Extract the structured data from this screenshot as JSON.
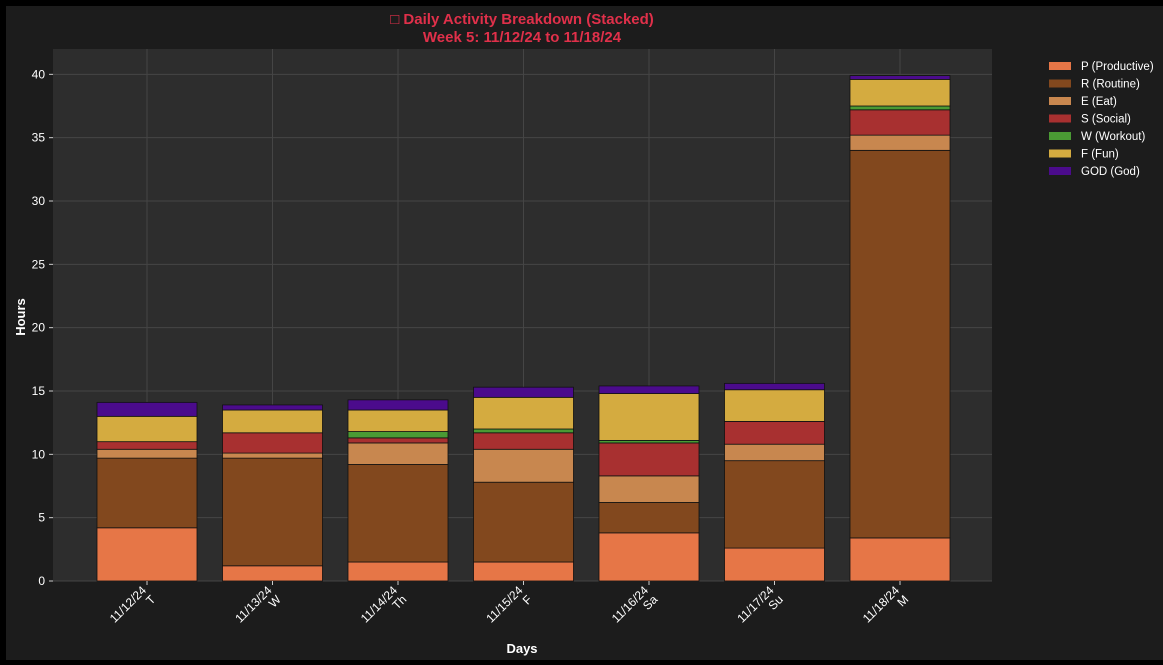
{
  "chart_data": {
    "type": "bar",
    "stacked": true,
    "title_line1": "□ Daily Activity Breakdown (Stacked)",
    "title_line2": "Week 5: 11/12/24 to 11/18/24",
    "xlabel": "Days",
    "ylabel": "Hours",
    "ylim": [
      0,
      42
    ],
    "yticks": [
      0,
      5,
      10,
      15,
      20,
      25,
      30,
      35,
      40
    ],
    "grid": true,
    "legend_position": "outside-top-right",
    "categories": [
      {
        "date": "11/12/24",
        "day": "T"
      },
      {
        "date": "11/13/24",
        "day": "W"
      },
      {
        "date": "11/14/24",
        "day": "Th"
      },
      {
        "date": "11/15/24",
        "day": "F"
      },
      {
        "date": "11/16/24",
        "day": "Sa"
      },
      {
        "date": "11/17/24",
        "day": "Su"
      },
      {
        "date": "11/18/24",
        "day": "M"
      }
    ],
    "series": [
      {
        "name": "P (Productive)",
        "color": "#e67647",
        "values": [
          4.2,
          1.2,
          1.5,
          1.5,
          3.8,
          2.6,
          3.4
        ]
      },
      {
        "name": "R (Routine)",
        "color": "#82481e",
        "values": [
          5.5,
          8.5,
          7.7,
          6.3,
          2.4,
          6.9,
          30.6
        ]
      },
      {
        "name": "E (Eat)",
        "color": "#c8874f",
        "values": [
          0.7,
          0.4,
          1.7,
          2.6,
          2.1,
          1.3,
          1.2
        ]
      },
      {
        "name": "S (Social)",
        "color": "#a83030",
        "values": [
          0.6,
          1.6,
          0.4,
          1.3,
          2.6,
          1.8,
          2.0
        ]
      },
      {
        "name": "W (Workout)",
        "color": "#4a9a34",
        "values": [
          0.0,
          0.0,
          0.5,
          0.3,
          0.2,
          0.0,
          0.3
        ]
      },
      {
        "name": "F (Fun)",
        "color": "#d4ab40",
        "values": [
          2.0,
          1.8,
          1.7,
          2.5,
          3.7,
          2.5,
          2.1
        ]
      },
      {
        "name": "GOD (God)",
        "color": "#4b0b8c",
        "values": [
          1.1,
          0.4,
          0.8,
          0.8,
          0.6,
          0.5,
          0.3
        ]
      }
    ],
    "colors": {
      "figure_bg": "#1c1c1c",
      "plot_bg": "#2d2d2d",
      "title": "#e0304a",
      "text": "#ffffff",
      "grid": "#454545"
    }
  }
}
